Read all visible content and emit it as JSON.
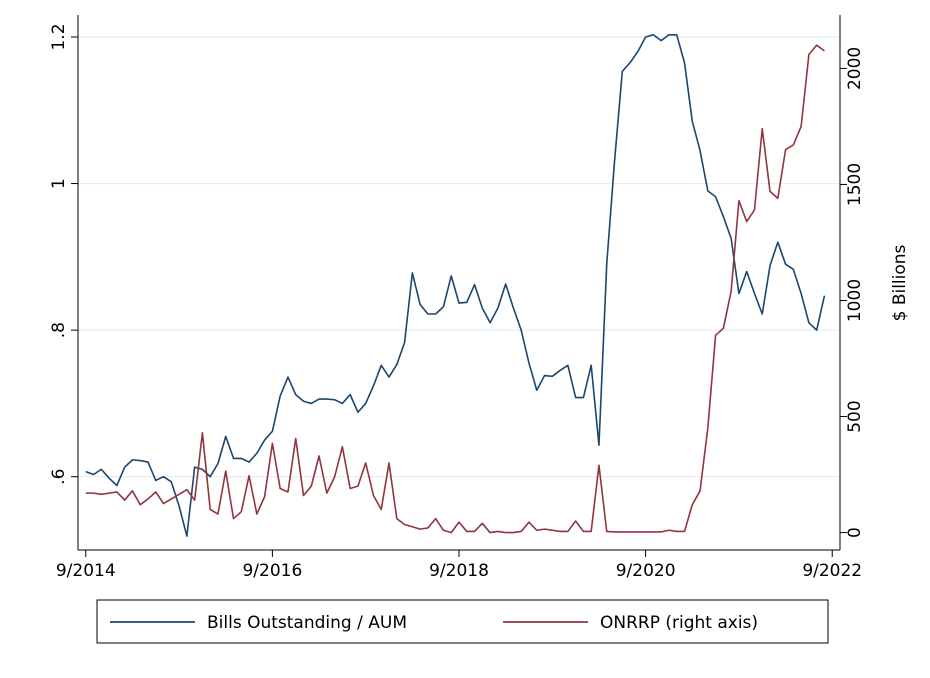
{
  "chart_data": {
    "type": "line",
    "y2label": "$ Billions",
    "x": [
      "9/2014",
      "10/2014",
      "11/2014",
      "12/2014",
      "1/2015",
      "2/2015",
      "3/2015",
      "4/2015",
      "5/2015",
      "6/2015",
      "7/2015",
      "8/2015",
      "9/2015",
      "10/2015",
      "11/2015",
      "12/2015",
      "1/2016",
      "2/2016",
      "3/2016",
      "4/2016",
      "5/2016",
      "6/2016",
      "7/2016",
      "8/2016",
      "9/2016",
      "10/2016",
      "11/2016",
      "12/2016",
      "1/2017",
      "2/2017",
      "3/2017",
      "4/2017",
      "5/2017",
      "6/2017",
      "7/2017",
      "8/2017",
      "9/2017",
      "10/2017",
      "11/2017",
      "12/2017",
      "1/2018",
      "2/2018",
      "3/2018",
      "4/2018",
      "5/2018",
      "6/2018",
      "7/2018",
      "8/2018",
      "9/2018",
      "10/2018",
      "11/2018",
      "12/2018",
      "1/2019",
      "2/2019",
      "3/2019",
      "4/2019",
      "5/2019",
      "6/2019",
      "7/2019",
      "8/2019",
      "9/2019",
      "10/2019",
      "11/2019",
      "12/2019",
      "1/2020",
      "2/2020",
      "3/2020",
      "4/2020",
      "5/2020",
      "6/2020",
      "7/2020",
      "8/2020",
      "9/2020",
      "10/2020",
      "11/2020",
      "12/2020",
      "1/2021",
      "2/2021",
      "3/2021",
      "4/2021",
      "5/2021",
      "6/2021",
      "7/2021",
      "8/2021",
      "9/2021",
      "10/2021",
      "11/2021",
      "12/2021",
      "1/2022",
      "2/2022",
      "3/2022",
      "4/2022",
      "5/2022",
      "6/2022",
      "7/2022",
      "8/2022"
    ],
    "series": [
      {
        "name": "Bills Outstanding / AUM",
        "color": "#1a476f",
        "axis": "y",
        "values": [
          0.607,
          0.603,
          0.61,
          0.598,
          0.588,
          0.613,
          0.623,
          0.622,
          0.62,
          0.595,
          0.6,
          0.593,
          0.56,
          0.519,
          0.613,
          0.61,
          0.6,
          0.618,
          0.655,
          0.625,
          0.625,
          0.62,
          0.632,
          0.65,
          0.662,
          0.71,
          0.736,
          0.712,
          0.703,
          0.7,
          0.706,
          0.706,
          0.705,
          0.7,
          0.712,
          0.688,
          0.7,
          0.724,
          0.752,
          0.736,
          0.753,
          0.783,
          0.878,
          0.835,
          0.822,
          0.822,
          0.832,
          0.874,
          0.837,
          0.838,
          0.862,
          0.83,
          0.81,
          0.83,
          0.863,
          0.83,
          0.8,
          0.755,
          0.718,
          0.738,
          0.737,
          0.745,
          0.752,
          0.708,
          0.708,
          0.752,
          0.643,
          0.89,
          1.03,
          1.153,
          1.165,
          1.18,
          1.2,
          1.203,
          1.195,
          1.203,
          1.203,
          1.165,
          1.085,
          1.045,
          0.99,
          0.982,
          0.955,
          0.925,
          0.85,
          0.88,
          0.85,
          0.822,
          0.888,
          0.92,
          0.89,
          0.883,
          0.85,
          0.81,
          0.8,
          0.847
        ]
      },
      {
        "name": "ONRRP (right axis)",
        "color": "#90353b",
        "axis": "y2",
        "values": [
          170,
          170,
          165,
          170,
          175,
          140,
          180,
          120,
          145,
          175,
          125,
          145,
          165,
          185,
          140,
          430,
          100,
          80,
          265,
          60,
          90,
          245,
          80,
          155,
          385,
          190,
          175,
          405,
          160,
          200,
          330,
          170,
          240,
          370,
          190,
          200,
          300,
          160,
          100,
          300,
          60,
          35,
          25,
          15,
          20,
          60,
          10,
          0,
          45,
          5,
          5,
          40,
          0,
          5,
          0,
          0,
          5,
          45,
          10,
          15,
          10,
          5,
          5,
          50,
          5,
          5,
          290,
          5,
          3,
          3,
          3,
          3,
          3,
          3,
          3,
          10,
          5,
          5,
          120,
          180,
          450,
          850,
          880,
          1040,
          1430,
          1340,
          1390,
          1740,
          1470,
          1440,
          1650,
          1670,
          1750,
          2060,
          2100,
          2075
        ]
      }
    ],
    "xlim": [
      "8/2014",
      "10/2022"
    ],
    "xticks": [
      "9/2014",
      "9/2016",
      "9/2018",
      "9/2020",
      "9/2022"
    ],
    "ylim": [
      0.5,
      1.23
    ],
    "yticks": [
      {
        "value": 0.6,
        "label": ".6"
      },
      {
        "value": 0.8,
        "label": ".8"
      },
      1,
      1.2
    ],
    "y2lim": [
      -75,
      2230
    ],
    "y2ticks": [
      0,
      500,
      1000,
      1500,
      2000
    ],
    "grid": true,
    "legend": "bottom"
  }
}
